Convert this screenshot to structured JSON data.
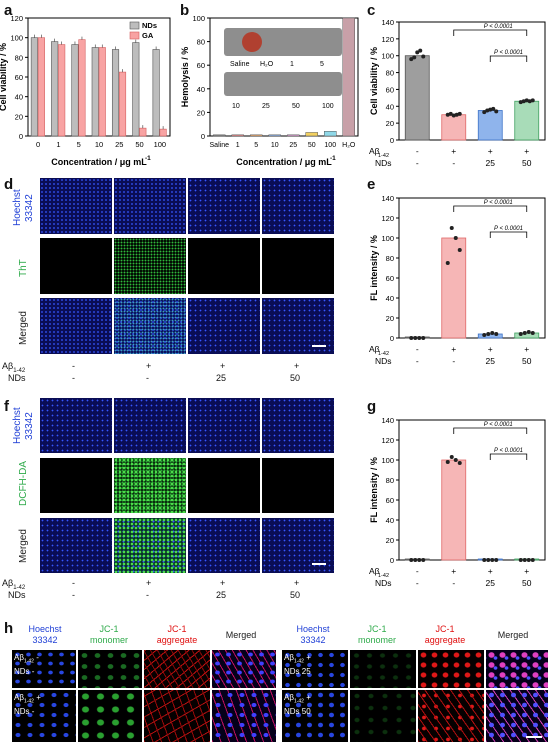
{
  "panel_letters": {
    "a": "a",
    "b": "b",
    "c": "c",
    "d": "d",
    "e": "e",
    "f": "f",
    "g": "g",
    "h": "h"
  },
  "colors": {
    "nds": "#bdbdbd",
    "ga": "#f8a3a3",
    "pink": "#f6b6b6",
    "blue": "#8fb4ec",
    "green": "#a8dcb8",
    "grey": "#9e9e9e",
    "hoechst": "#1f3fd6",
    "tht": "#2eaa4a",
    "dcfh": "#2eaa4a",
    "jc1_red": "#e01010"
  },
  "chart_data": [
    {
      "panel": "a",
      "type": "bar",
      "xlabel": "Concentration / μg mL",
      "xlabel_sup": "-1",
      "ylabel": "Cell viability / %",
      "ylim": [
        0,
        120
      ],
      "yticks": [
        "0",
        "20",
        "40",
        "60",
        "80",
        "100",
        "120"
      ],
      "categories": [
        "0",
        "1",
        "5",
        "10",
        "25",
        "50",
        "100"
      ],
      "legend_position": "top-right",
      "series": [
        {
          "name": "NDs",
          "values": [
            100,
            96,
            93,
            90,
            88,
            95,
            88
          ]
        },
        {
          "name": "GA",
          "values": [
            100,
            93,
            98,
            90,
            65,
            8,
            7
          ]
        }
      ]
    },
    {
      "panel": "b",
      "type": "bar",
      "xlabel": "Concentration / μg mL",
      "xlabel_sup": "-1",
      "ylabel": "Hemolysis / %",
      "ylim": [
        0,
        100
      ],
      "yticks": [
        "0",
        "20",
        "40",
        "60",
        "80",
        "100"
      ],
      "categories": [
        "Saline",
        "1",
        "5",
        "10",
        "25",
        "50",
        "100",
        "H₂O"
      ],
      "values": [
        1,
        1,
        1,
        1,
        1,
        3,
        4,
        100
      ],
      "inset_labels_top": [
        "Saline",
        "H₂O",
        "1",
        "5"
      ],
      "inset_labels_bottom": [
        "10",
        "25",
        "50",
        "100"
      ]
    },
    {
      "panel": "c",
      "type": "bar",
      "ylabel": "Cell viability / %",
      "ylim": [
        0,
        140
      ],
      "yticks": [
        "0",
        "20",
        "40",
        "60",
        "80",
        "100",
        "120",
        "140"
      ],
      "values": [
        100,
        30,
        35,
        46
      ],
      "points": [
        [
          96,
          98,
          104,
          106,
          99
        ],
        [
          30,
          31,
          29,
          30,
          31
        ],
        [
          33,
          35,
          36,
          37,
          34
        ],
        [
          45,
          46,
          47,
          46,
          47
        ]
      ],
      "significance": [
        "P < 0.0001",
        "P < 0.0001"
      ],
      "rows": {
        "abeta_label": "Aβ",
        "abeta_sub": "1-42",
        "nds_label": "NDs",
        "abeta": [
          "-",
          "+",
          "+",
          "+"
        ],
        "nds": [
          "-",
          "-",
          "25",
          "50"
        ]
      }
    },
    {
      "panel": "e",
      "type": "bar",
      "ylabel": "FL intensity / %",
      "ylim": [
        0,
        140
      ],
      "yticks": [
        "0",
        "20",
        "40",
        "60",
        "80",
        "100",
        "120",
        "140"
      ],
      "values": [
        0,
        100,
        4,
        5
      ],
      "points": [
        [
          0,
          0,
          0,
          0
        ],
        [
          75,
          110,
          100,
          88
        ],
        [
          3,
          4,
          5,
          4
        ],
        [
          4,
          5,
          6,
          5
        ]
      ],
      "significance": [
        "P < 0.0001",
        "P < 0.0001"
      ],
      "rows": {
        "abeta_label": "Aβ",
        "abeta_sub": "1-42",
        "nds_label": "NDs",
        "abeta": [
          "-",
          "+",
          "+",
          "+"
        ],
        "nds": [
          "-",
          "-",
          "25",
          "50"
        ]
      }
    },
    {
      "panel": "g",
      "type": "bar",
      "ylabel": "FL intensity / %",
      "ylim": [
        0,
        140
      ],
      "yticks": [
        "0",
        "20",
        "40",
        "60",
        "80",
        "100",
        "120",
        "140"
      ],
      "values": [
        0,
        100,
        0,
        0
      ],
      "points": [
        [
          0,
          0,
          0,
          0
        ],
        [
          98,
          103,
          100,
          97
        ],
        [
          0,
          0,
          0,
          0
        ],
        [
          0,
          0,
          0,
          0
        ]
      ],
      "significance": [
        "P < 0.0001",
        "P < 0.0001"
      ],
      "rows": {
        "abeta_label": "Aβ",
        "abeta_sub": "1-42",
        "nds_label": "NDs",
        "abeta": [
          "-",
          "+",
          "+",
          "+"
        ],
        "nds": [
          "-",
          "-",
          "25",
          "50"
        ]
      }
    }
  ],
  "panel_d": {
    "row_labels": [
      "Hoechst 33342",
      "ThT",
      "Merged"
    ],
    "abeta_label": "Aβ",
    "abeta_sub": "1-42",
    "nds_label": "NDs",
    "abeta": [
      "-",
      "+",
      "+",
      "+"
    ],
    "nds": [
      "-",
      "-",
      "25",
      "50"
    ]
  },
  "panel_f": {
    "row_labels": [
      "Hoechst 33342",
      "DCFH-DA",
      "Merged"
    ],
    "abeta_label": "Aβ",
    "abeta_sub": "1-42",
    "nds_label": "NDs",
    "abeta": [
      "-",
      "+",
      "+",
      "+"
    ],
    "nds": [
      "-",
      "-",
      "25",
      "50"
    ]
  },
  "panel_h": {
    "headers": [
      "Hoechst 33342",
      "JC-1 monomer",
      "JC-1 aggregate",
      "Merged"
    ],
    "cells": [
      {
        "abeta": "-",
        "nds": "-"
      },
      {
        "abeta": "+",
        "nds": "25"
      },
      {
        "abeta": "+",
        "nds": "-"
      },
      {
        "abeta": "+",
        "nds": "50"
      }
    ],
    "abeta_label": "Aβ",
    "abeta_sub": "1-42",
    "nds_label": "NDs"
  }
}
